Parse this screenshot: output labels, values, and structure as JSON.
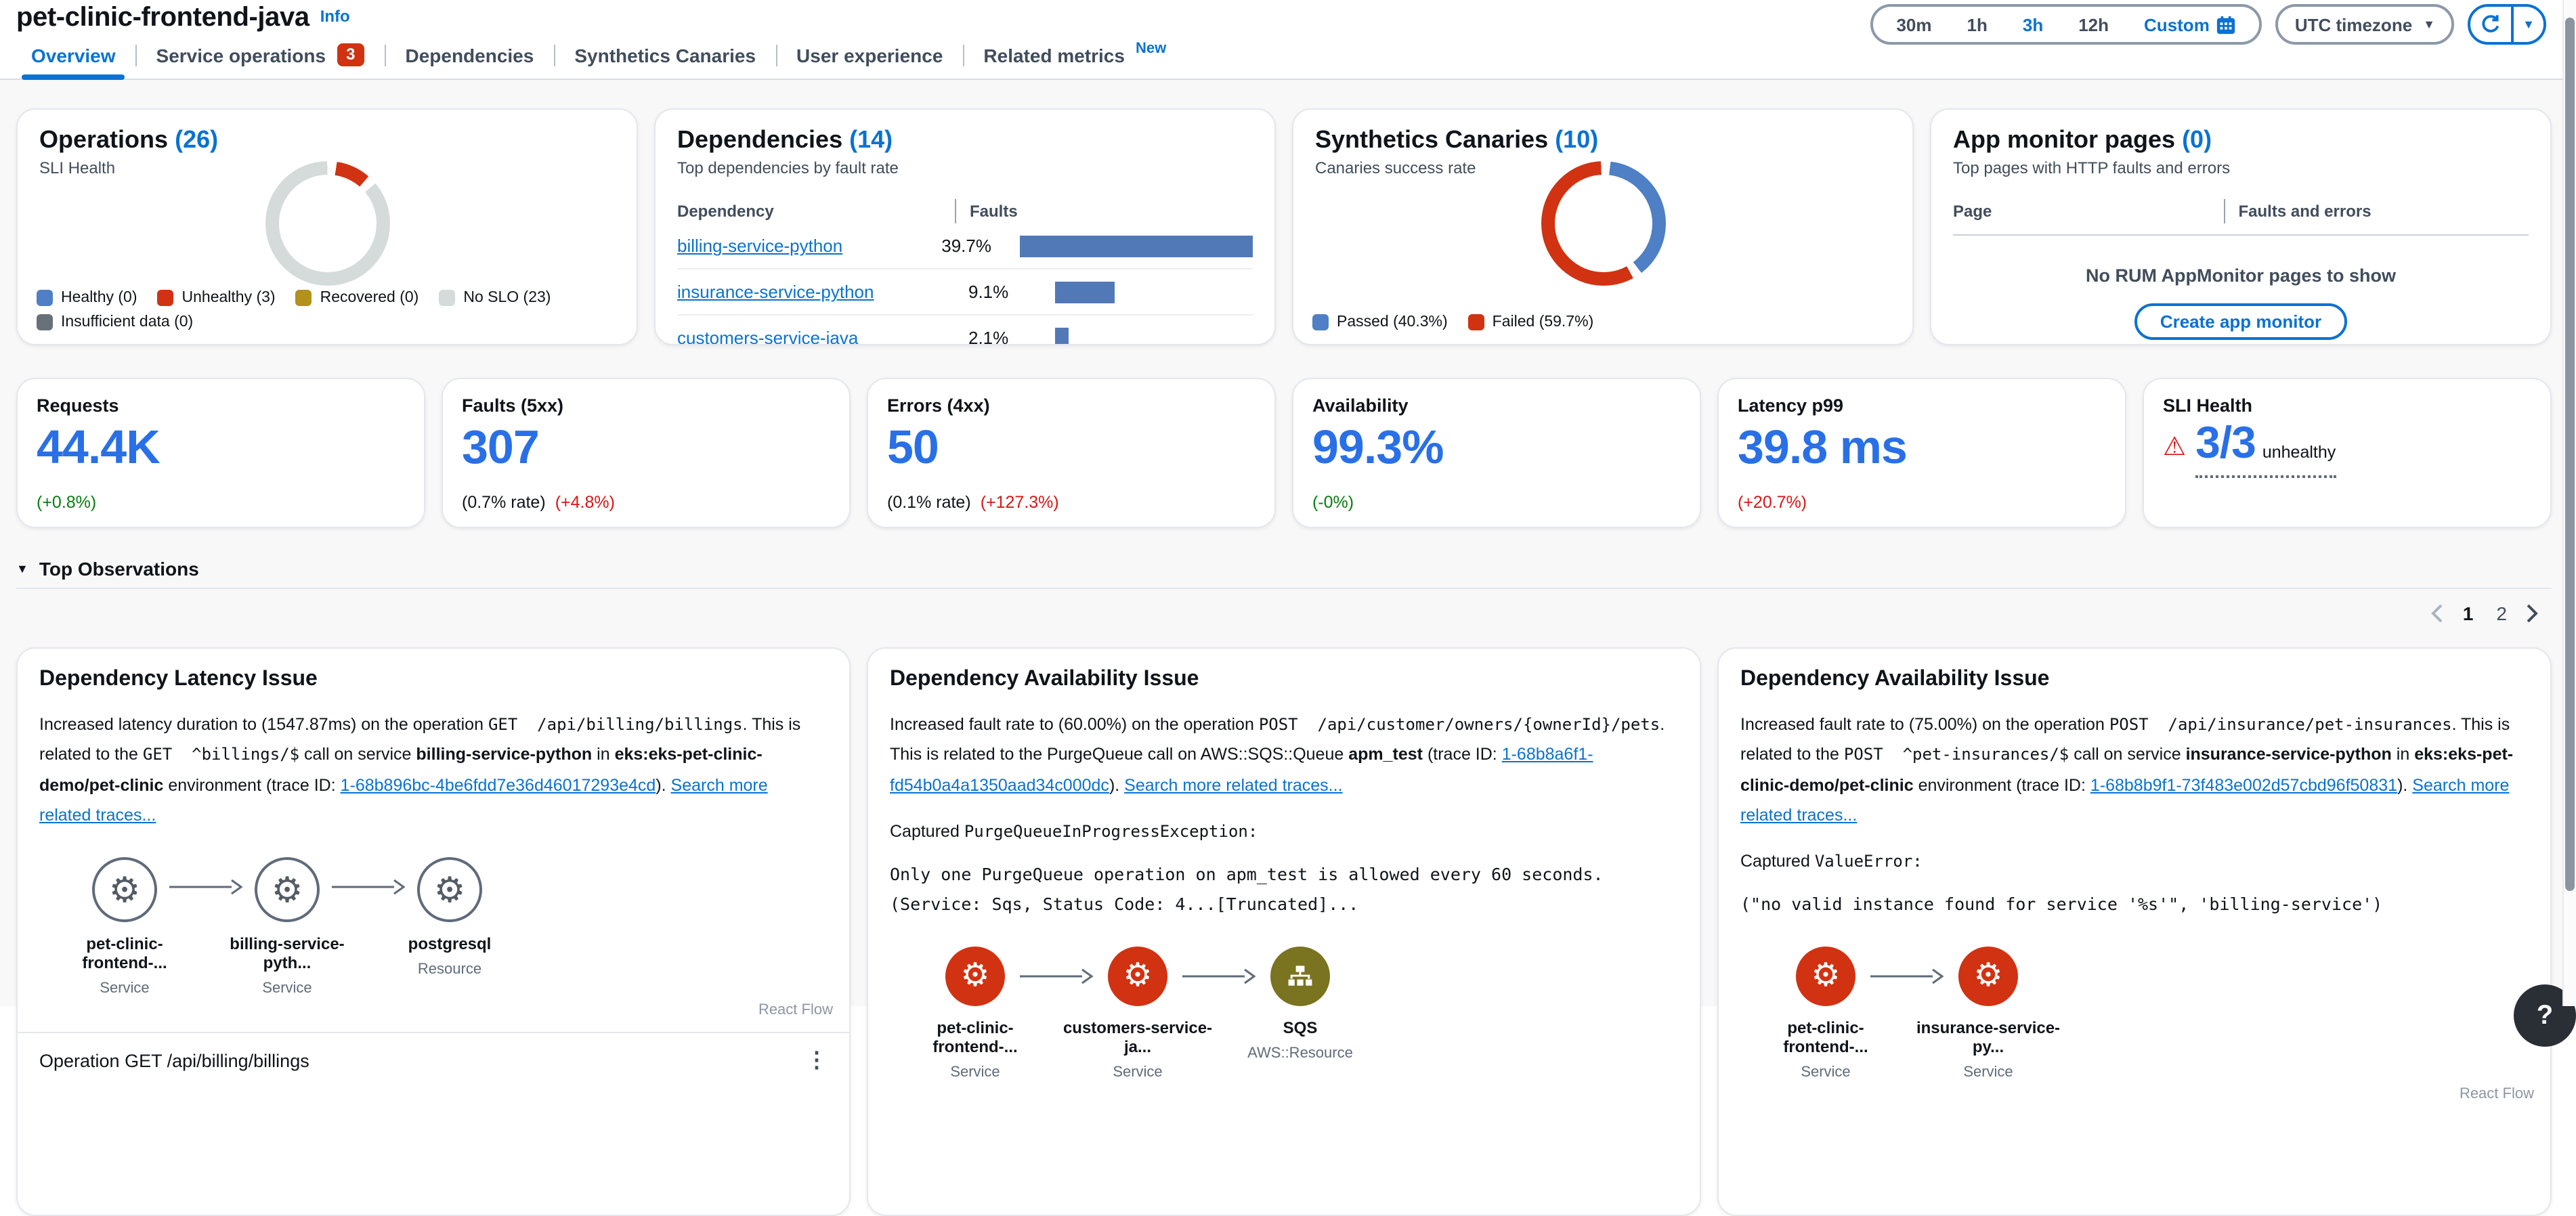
{
  "header": {
    "title": "pet-clinic-frontend-java",
    "info_label": "Info",
    "time_ranges": [
      "30m",
      "1h",
      "3h",
      "12h"
    ],
    "time_range_active": "3h",
    "custom_label": "Custom",
    "timezone": "UTC timezone"
  },
  "tabs": [
    {
      "label": "Overview",
      "active": true
    },
    {
      "label": "Service operations",
      "badge": "3"
    },
    {
      "label": "Dependencies"
    },
    {
      "label": "Synthetics Canaries"
    },
    {
      "label": "User experience"
    },
    {
      "label": "Related metrics",
      "tag": "New"
    }
  ],
  "colors": {
    "accent": "#0972d3",
    "metric_blue": "#2970e8",
    "chart_red": "#d13212",
    "text_red": "#d91515",
    "green": "#037f0c",
    "chart_blue": "#4f7fc4",
    "chart_gray": "#d5dbdb",
    "legend_olive": "#b2911c",
    "node_olive": "#7a731f",
    "insufficient_gray": "#687078"
  },
  "chart_data": [
    {
      "type": "pie",
      "title": "Operations SLI Health",
      "categories": [
        "Healthy",
        "Unhealthy",
        "Recovered",
        "No SLO",
        "Insufficient data"
      ],
      "values": [
        0,
        3,
        0,
        23,
        0
      ]
    },
    {
      "type": "bar",
      "title": "Top dependencies by fault rate",
      "categories": [
        "billing-service-python",
        "insurance-service-python",
        "customers-service-java"
      ],
      "values": [
        39.7,
        9.1,
        2.1
      ],
      "xlabel": "Faults",
      "unit": "%"
    },
    {
      "type": "pie",
      "title": "Canaries success rate",
      "categories": [
        "Passed",
        "Failed"
      ],
      "values": [
        40.3,
        59.7
      ],
      "unit": "%"
    }
  ],
  "cards": {
    "operations": {
      "title": "Operations",
      "count": "(26)",
      "subtitle": "SLI Health",
      "donut": {
        "slices": [
          {
            "color": "#d13212",
            "pct": 11.5
          },
          {
            "color": "#d5dbdb",
            "pct": 88.5
          }
        ],
        "gap": 9,
        "rotate": 4
      },
      "legend": [
        {
          "label": "Healthy (0)"
        },
        {
          "label": "Unhealthy (3)"
        },
        {
          "label": "Recovered (0)"
        },
        {
          "label": "No SLO (23)"
        },
        {
          "label": "Insufficient data (0)"
        }
      ]
    },
    "dependencies": {
      "title": "Dependencies",
      "count": "(14)",
      "subtitle": "Top dependencies by fault rate",
      "col1": "Dependency",
      "col2": "Faults",
      "rows": [
        {
          "name": "billing-service-python",
          "value": "39.7%",
          "pct": 39.7
        },
        {
          "name": "insurance-service-python",
          "value": "9.1%",
          "pct": 9.1
        },
        {
          "name": "customers-service-java",
          "value": "2.1%",
          "pct": 2.1
        }
      ]
    },
    "synthetics": {
      "title": "Synthetics Canaries",
      "count": "(10)",
      "subtitle": "Canaries success rate",
      "donut": {
        "slices": [
          {
            "color": "#4f7fc4",
            "pct": 40.3
          },
          {
            "color": "#d13212",
            "pct": 59.7
          }
        ],
        "gap": 9,
        "rotate": 2
      },
      "legend": [
        {
          "label": "Passed (40.3%)"
        },
        {
          "label": "Failed (59.7%)"
        }
      ]
    },
    "app_monitor": {
      "title": "App monitor pages",
      "count": "(0)",
      "subtitle": "Top pages with HTTP faults and errors",
      "col1": "Page",
      "col2": "Faults and errors",
      "empty_text": "No RUM AppMonitor pages to show",
      "button_label": "Create app monitor"
    }
  },
  "metrics": [
    {
      "label": "Requests",
      "value": "44.4K",
      "note1": "(+0.8%)"
    },
    {
      "label": "Faults (5xx)",
      "value": "307",
      "note1": "(0.7% rate)",
      "note2": "(+4.8%)"
    },
    {
      "label": "Errors (4xx)",
      "value": "50",
      "note1": "(0.1% rate)",
      "note2": "(+127.3%)"
    },
    {
      "label": "Availability",
      "value": "99.3%",
      "note1": "(-0%)"
    },
    {
      "label": "Latency p99",
      "value": "39.8 ms",
      "note1": "(+20.7%)"
    },
    {
      "label": "SLI Health",
      "value": "3/3",
      "suffix": "unhealthy"
    }
  ],
  "observations": {
    "section_title": "Top Observations",
    "pagination": {
      "prev": "chevron-left",
      "pages": [
        "1",
        "2"
      ],
      "current": "1",
      "next": "chevron-right"
    },
    "cards": [
      {
        "title": "Dependency Latency Issue",
        "segments": [
          {
            "style": "plain",
            "text": "Increased latency duration to (1547.87ms) on the operation "
          },
          {
            "style": "mono",
            "text": "GET  /api/billing/billings"
          },
          {
            "style": "plain",
            "text": ". This is related to the "
          },
          {
            "style": "mono",
            "text": "GET  ^billings/$"
          },
          {
            "style": "plain",
            "text": " call on service "
          },
          {
            "style": "bold",
            "text": "billing-service-python"
          },
          {
            "style": "plain",
            "text": " in "
          },
          {
            "style": "bold",
            "text": "eks:eks-pet-clinic-demo/pet-clinic"
          },
          {
            "style": "plain",
            "text": " environment (trace ID: "
          },
          {
            "style": "link",
            "text": "1-68b896bc-4be6fdd7e36d46017293e4cd"
          },
          {
            "style": "plain",
            "text": "). "
          },
          {
            "style": "link",
            "text": "Search more related traces..."
          }
        ],
        "nodes": [
          {
            "label": "pet-clinic-frontend-...",
            "sublabel": "Service"
          },
          {
            "label": "billing-service-pyth...",
            "sublabel": "Service"
          },
          {
            "label": "postgresql",
            "sublabel": "Resource"
          }
        ],
        "attribution": "React Flow",
        "footer": "Operation GET /api/billing/billings"
      },
      {
        "title": "Dependency Availability Issue",
        "segments": [
          {
            "style": "plain",
            "text": "Increased fault rate to (60.00%) on the operation "
          },
          {
            "style": "mono",
            "text": "POST  /api/customer/owners/{ownerId}/pets"
          },
          {
            "style": "plain",
            "text": ". This is related to the PurgeQueue call on AWS::SQS::Queue "
          },
          {
            "style": "bold",
            "text": "apm_test"
          },
          {
            "style": "plain",
            "text": " (trace ID: "
          },
          {
            "style": "link",
            "text": "1-68b8a6f1-fd54b0a4a1350aad34c000dc"
          },
          {
            "style": "plain",
            "text": "). "
          },
          {
            "style": "link",
            "text": "Search more related traces..."
          }
        ],
        "captured_prefix": "Captured ",
        "captured_name": "PurgeQueueInProgressException:",
        "body": "Only one PurgeQueue operation on apm_test is allowed every 60 seconds. (Service: Sqs, Status Code: 4...[Truncated]...",
        "nodes": [
          {
            "label": "pet-clinic-frontend-...",
            "sublabel": "Service"
          },
          {
            "label": "customers-service-ja...",
            "sublabel": "Service"
          },
          {
            "label": "SQS",
            "sublabel": "AWS::Resource"
          }
        ]
      },
      {
        "title": "Dependency Availability Issue",
        "segments": [
          {
            "style": "plain",
            "text": "Increased fault rate to (75.00%) on the operation "
          },
          {
            "style": "mono",
            "text": "POST  /api/insurance/pet-insurances"
          },
          {
            "style": "plain",
            "text": ". This is related to the "
          },
          {
            "style": "mono",
            "text": "POST  ^pet-insurances/$"
          },
          {
            "style": "plain",
            "text": " call on service "
          },
          {
            "style": "bold",
            "text": "insurance-service-python"
          },
          {
            "style": "plain",
            "text": " in "
          },
          {
            "style": "bold",
            "text": "eks:eks-pet-clinic-demo/pet-clinic"
          },
          {
            "style": "plain",
            "text": " environment (trace ID: "
          },
          {
            "style": "link",
            "text": "1-68b8b9f1-73f483e002d57cbd96f50831"
          },
          {
            "style": "plain",
            "text": "). "
          },
          {
            "style": "link",
            "text": "Search more related traces..."
          }
        ],
        "captured_prefix": "Captured ",
        "captured_name": "ValueError:",
        "body": "(\"no valid instance found for service '%s'\", 'billing-service')",
        "nodes": [
          {
            "label": "pet-clinic-frontend-...",
            "sublabel": "Service"
          },
          {
            "label": "insurance-service-py...",
            "sublabel": "Service"
          }
        ],
        "attribution": "React Flow"
      }
    ]
  },
  "help_label": "?"
}
